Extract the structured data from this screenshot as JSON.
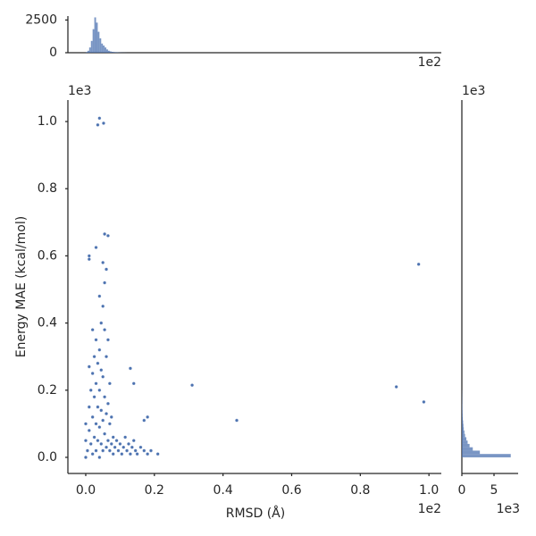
{
  "chart_data": [
    {
      "type": "scatter",
      "xlabel": "RMSD (Å)",
      "ylabel": "Energy MAE (kcal/mol)",
      "x_offset": "1e2",
      "y_offset": "1e3",
      "color": "#4c72b0",
      "xlim": [
        -0.052,
        1.036
      ],
      "ylim": [
        -0.048,
        1.064
      ],
      "xticks": [
        {
          "value": 0,
          "label": "0.0"
        },
        {
          "value": 0.2,
          "label": "0.2"
        },
        {
          "value": 0.4,
          "label": "0.4"
        },
        {
          "value": 0.6,
          "label": "0.6"
        },
        {
          "value": 0.8,
          "label": "0.8"
        },
        {
          "value": 1,
          "label": "1.0"
        }
      ],
      "yticks": [
        {
          "value": 0,
          "label": "0.0"
        },
        {
          "value": 0.2,
          "label": "0.2"
        },
        {
          "value": 0.4,
          "label": "0.4"
        },
        {
          "value": 0.6,
          "label": "0.6"
        },
        {
          "value": 0.8,
          "label": "0.8"
        },
        {
          "value": 1,
          "label": "1.0"
        }
      ],
      "x": [
        0.0,
        0.0,
        0.0,
        0.005,
        0.01,
        0.01,
        0.015,
        0.015,
        0.02,
        0.02,
        0.02,
        0.025,
        0.025,
        0.025,
        0.03,
        0.03,
        0.03,
        0.03,
        0.035,
        0.035,
        0.035,
        0.04,
        0.04,
        0.04,
        0.04,
        0.045,
        0.045,
        0.045,
        0.045,
        0.05,
        0.05,
        0.05,
        0.05,
        0.055,
        0.055,
        0.055,
        0.055,
        0.06,
        0.06,
        0.06,
        0.06,
        0.065,
        0.065,
        0.065,
        0.07,
        0.07,
        0.07,
        0.075,
        0.075,
        0.08,
        0.08,
        0.085,
        0.09,
        0.095,
        0.1,
        0.105,
        0.11,
        0.115,
        0.12,
        0.125,
        0.13,
        0.135,
        0.14,
        0.145,
        0.15,
        0.16,
        0.17,
        0.18,
        0.19,
        0.01,
        0.02,
        0.04,
        0.05,
        0.035,
        0.04,
        0.052,
        0.055,
        0.065,
        0.03,
        0.01,
        0.01,
        0.97,
        0.31,
        0.44,
        0.905,
        0.985,
        0.13,
        0.14,
        0.17,
        0.18,
        0.21
      ],
      "y": [
        0.0,
        0.05,
        0.1,
        0.02,
        0.08,
        0.15,
        0.04,
        0.2,
        0.01,
        0.12,
        0.25,
        0.06,
        0.18,
        0.3,
        0.02,
        0.1,
        0.22,
        0.35,
        0.05,
        0.15,
        0.28,
        0.0,
        0.09,
        0.2,
        0.32,
        0.04,
        0.14,
        0.26,
        0.4,
        0.02,
        0.11,
        0.24,
        0.45,
        0.07,
        0.18,
        0.38,
        0.52,
        0.03,
        0.13,
        0.3,
        0.56,
        0.05,
        0.16,
        0.35,
        0.02,
        0.1,
        0.22,
        0.04,
        0.12,
        0.01,
        0.06,
        0.03,
        0.05,
        0.02,
        0.04,
        0.01,
        0.03,
        0.06,
        0.02,
        0.04,
        0.01,
        0.03,
        0.05,
        0.02,
        0.01,
        0.03,
        0.02,
        0.01,
        0.02,
        0.27,
        0.38,
        0.48,
        0.58,
        0.99,
        1.01,
        0.995,
        0.665,
        0.66,
        0.625,
        0.6,
        0.59,
        0.575,
        0.215,
        0.11,
        0.21,
        0.165,
        0.265,
        0.22,
        0.11,
        0.12,
        0.01
      ]
    },
    {
      "type": "histogram",
      "x_offset": "1e2",
      "color": "#4c72b0",
      "xlim": [
        -0.052,
        1.036
      ],
      "ylim": [
        0,
        2800
      ],
      "yticks": [
        0,
        2500
      ],
      "bins": [
        0,
        0.005,
        0.01,
        0.015,
        0.02,
        0.025,
        0.03,
        0.035,
        0.04,
        0.045,
        0.05,
        0.055,
        0.06,
        0.065,
        0.07,
        0.075,
        0.08,
        0.085,
        0.09,
        0.095,
        0.1,
        0.105,
        0.11,
        0.115,
        0.12
      ],
      "values": [
        50,
        150,
        400,
        900,
        1800,
        2700,
        2300,
        1600,
        1100,
        700,
        550,
        400,
        250,
        150,
        100,
        70,
        50,
        40,
        30,
        20,
        15,
        10,
        8,
        5
      ]
    },
    {
      "type": "hbar_histogram",
      "x_offset": "1e3",
      "y_offset": "1e3",
      "color": "#4c72b0",
      "xlim": [
        0,
        8.75
      ],
      "ylim": [
        -0.048,
        1.064
      ],
      "xticks": [
        0,
        5
      ],
      "bins": [
        0,
        0.01,
        0.02,
        0.03,
        0.04,
        0.05,
        0.06,
        0.07,
        0.08,
        0.09,
        0.1,
        0.11,
        0.12,
        0.13,
        0.14,
        0.15,
        0.16,
        0.17,
        0.18,
        0.19,
        0.2
      ],
      "values": [
        7.6,
        2.8,
        1.7,
        1.2,
        0.9,
        0.7,
        0.5,
        0.4,
        0.3,
        0.25,
        0.2,
        0.15,
        0.12,
        0.1,
        0.08,
        0.06,
        0.05,
        0.04,
        0.03,
        0.02
      ]
    }
  ]
}
